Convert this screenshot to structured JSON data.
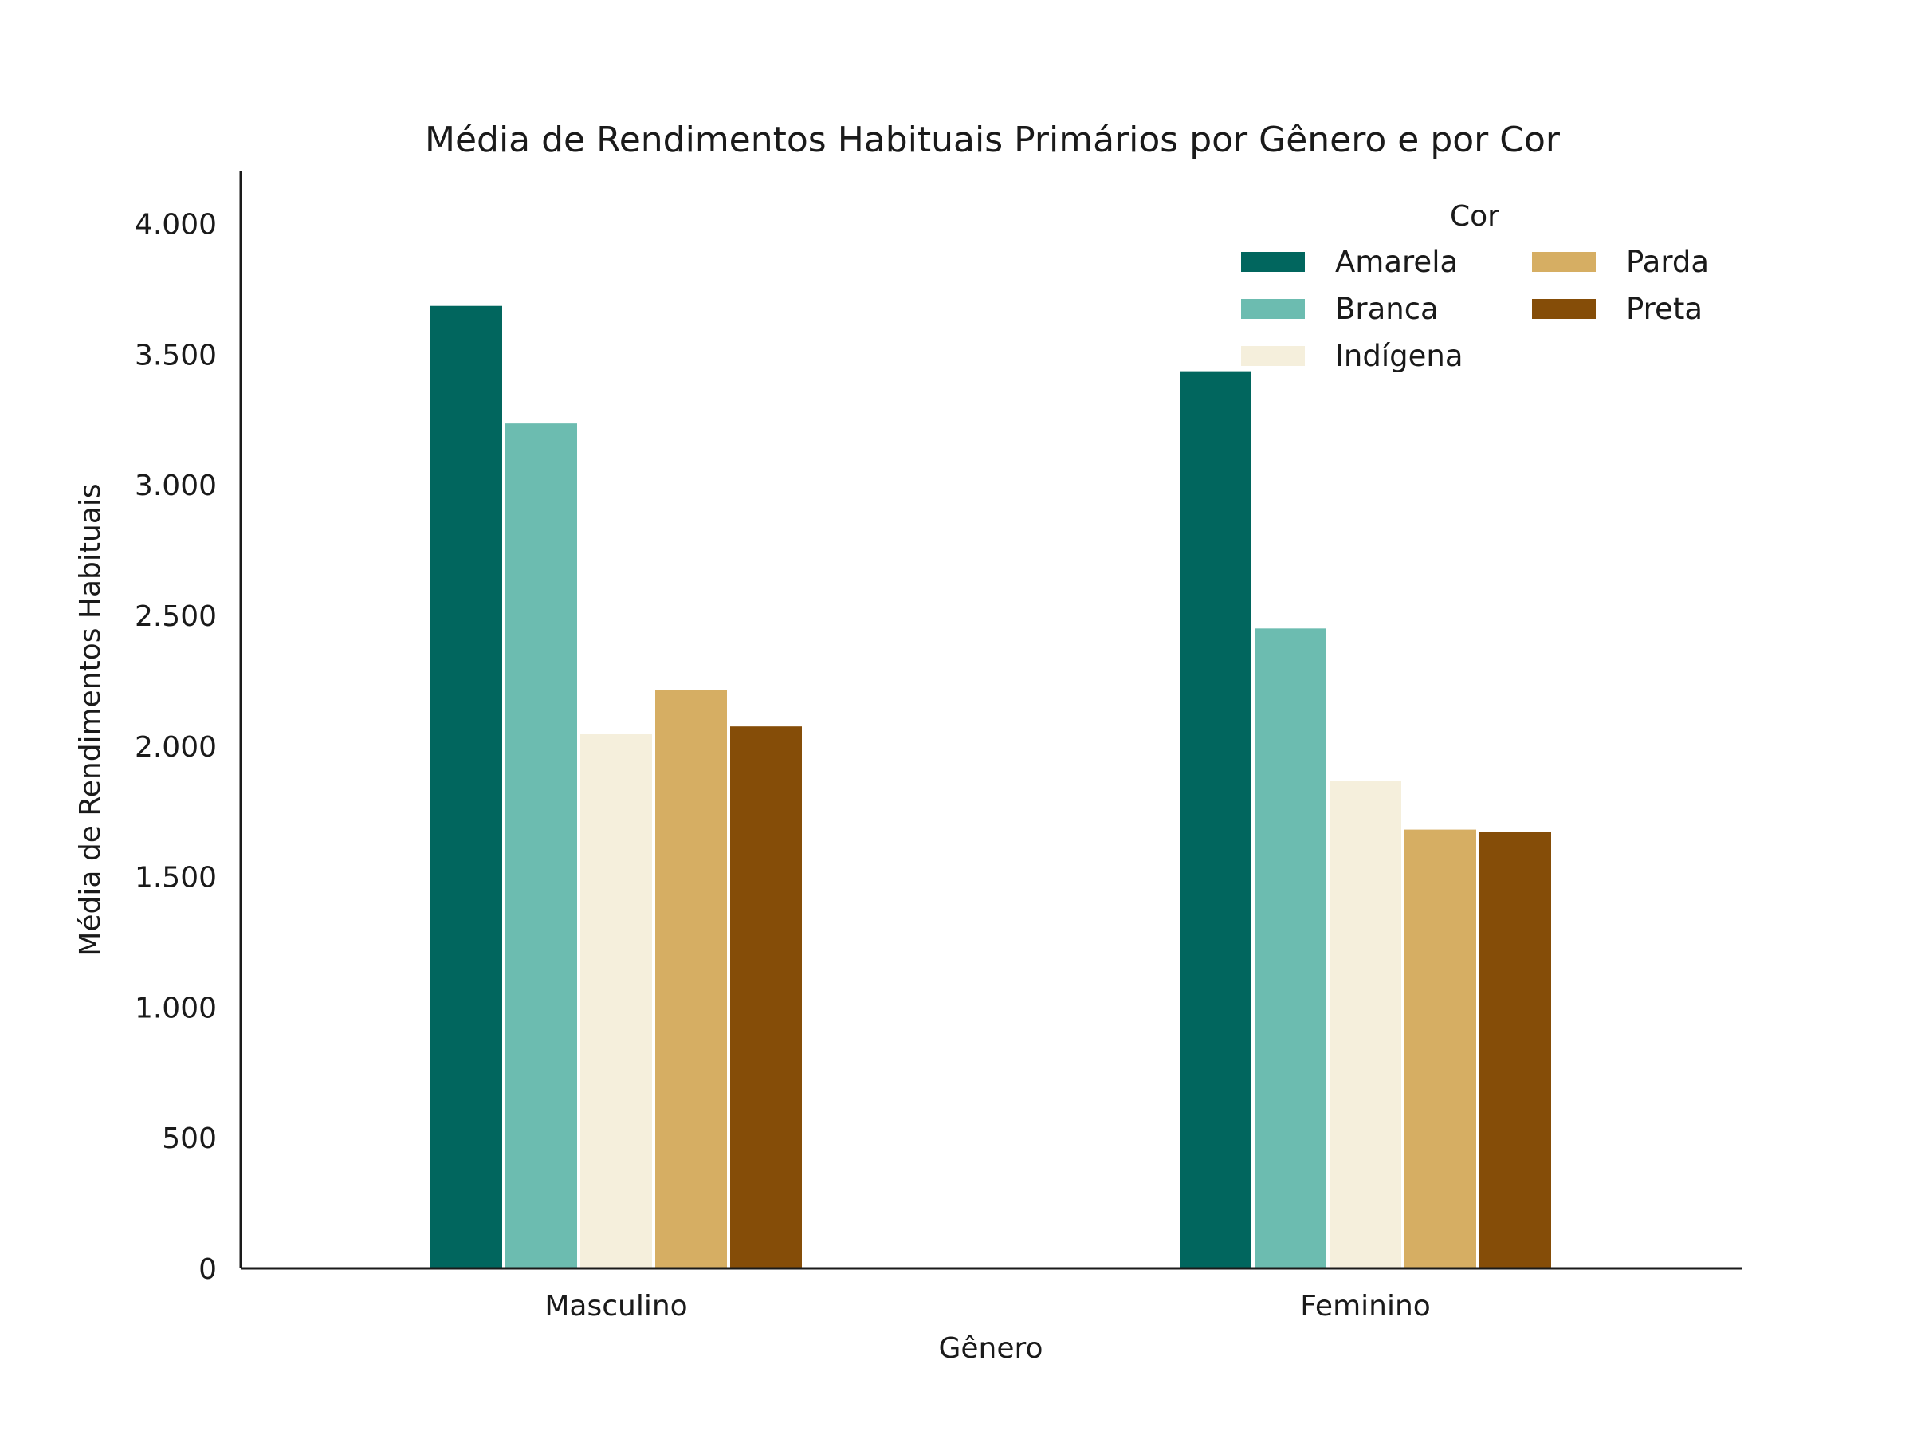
{
  "chart_data": {
    "type": "bar",
    "title": "Média de Rendimentos Habituais Primários por Gênero e por Cor",
    "xlabel": "Gênero",
    "ylabel": "Média de Rendimentos Habituais",
    "categories": [
      "Masculino",
      "Feminino"
    ],
    "ylim": [
      0,
      4200
    ],
    "yticks": [
      0,
      500,
      1000,
      1500,
      2000,
      2500,
      3000,
      3500,
      4000
    ],
    "ytick_labels": [
      "0",
      "500",
      "1.000",
      "1.500",
      "2.000",
      "2.500",
      "3.000",
      "3.500",
      "4.000"
    ],
    "legend": {
      "title": "Cor",
      "placement": "top-right",
      "columns": 2
    },
    "grid": false,
    "series": [
      {
        "name": "Amarela",
        "color": "#01665e",
        "values": [
          3685,
          3435
        ]
      },
      {
        "name": "Branca",
        "color": "#6cbcb0",
        "values": [
          3235,
          2450
        ]
      },
      {
        "name": "Indígena",
        "color": "#f5efdc",
        "values": [
          2045,
          1865
        ]
      },
      {
        "name": "Parda",
        "color": "#d6ae63",
        "values": [
          2215,
          1680
        ]
      },
      {
        "name": "Preta",
        "color": "#854d08",
        "values": [
          2075,
          1670
        ]
      }
    ]
  }
}
